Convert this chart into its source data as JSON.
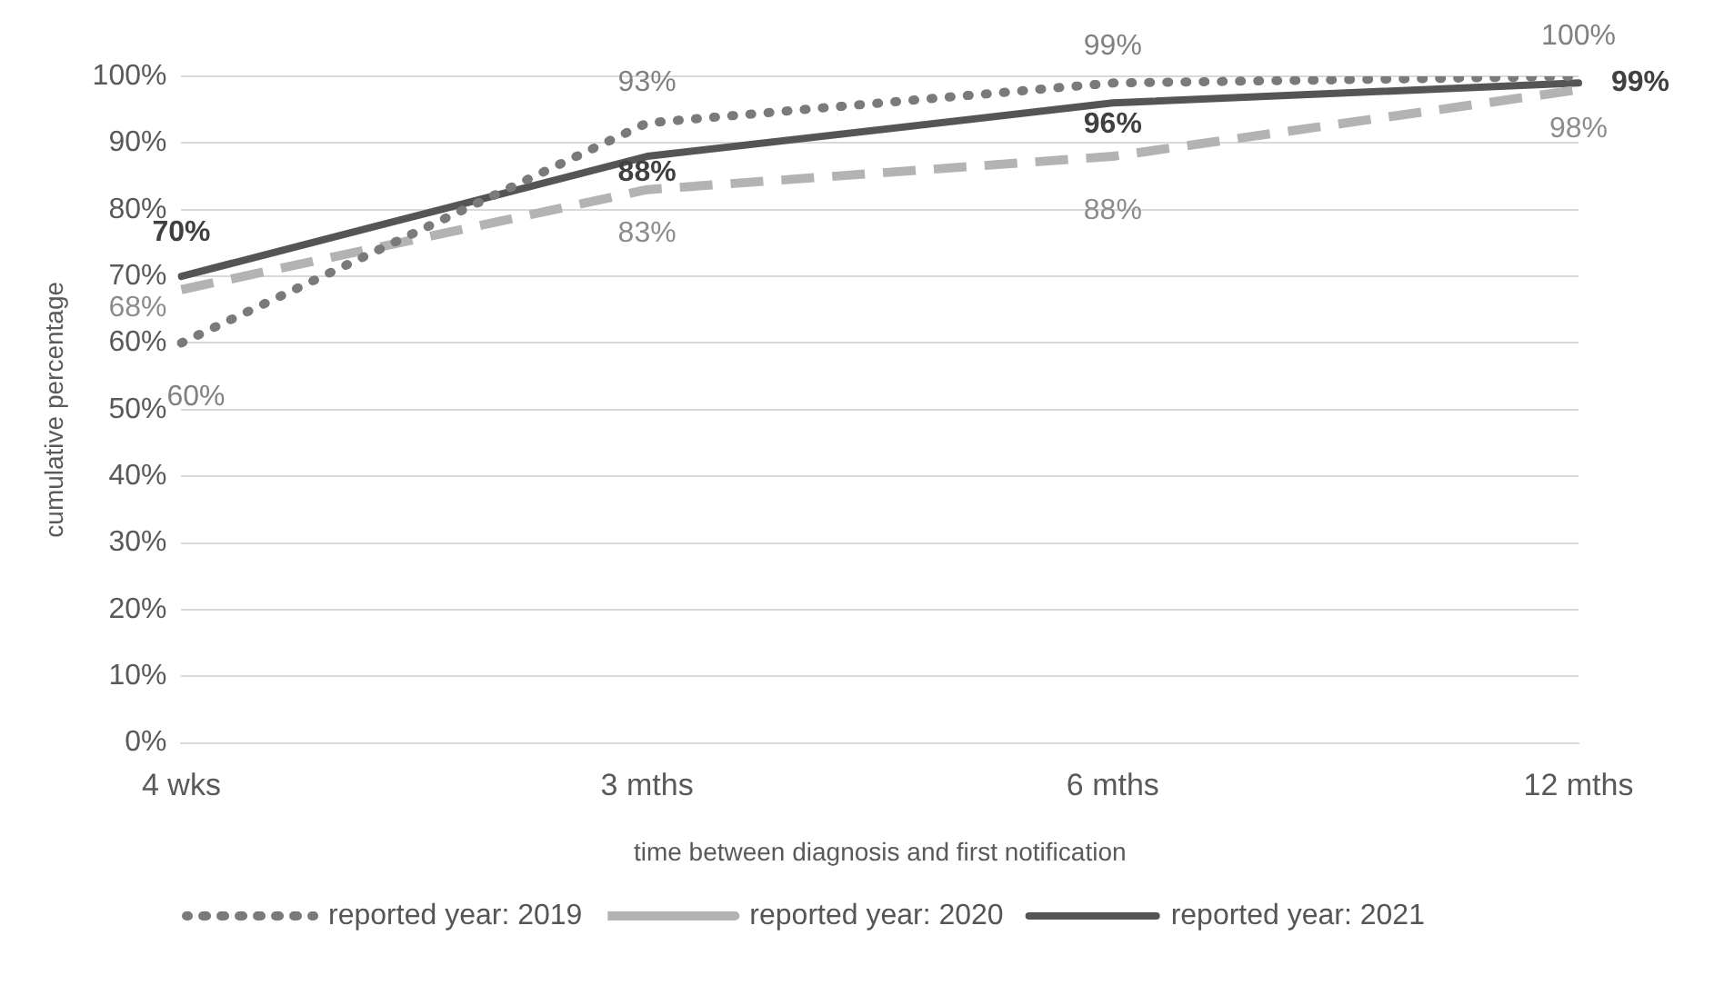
{
  "chart_data": {
    "type": "line",
    "xlabel": "time between diagnosis and first notification",
    "ylabel": "cumulative percentage",
    "categories": [
      "4 wks",
      "3 mths",
      "6 mths",
      "12 mths"
    ],
    "series": [
      {
        "name": "reported year: 2019",
        "color": "#7a7a7a",
        "line_style": "dotted",
        "values": [
          60,
          93,
          99,
          100
        ],
        "value_labels": [
          "60%",
          "93%",
          "99%",
          "100%"
        ]
      },
      {
        "name": "reported year: 2020",
        "color": "#b3b3b3",
        "line_style": "dashed",
        "values": [
          68,
          83,
          88,
          98
        ],
        "value_labels": [
          "68%",
          "83%",
          "88%",
          "98%"
        ]
      },
      {
        "name": "reported year: 2021",
        "color": "#555555",
        "line_style": "solid",
        "values": [
          70,
          88,
          96,
          99
        ],
        "value_labels": [
          "70%",
          "88%",
          "96%",
          "99%"
        ]
      }
    ],
    "ylim": [
      0,
      100
    ],
    "yticks": [
      {
        "value": 0,
        "label": "0%"
      },
      {
        "value": 10,
        "label": "10%"
      },
      {
        "value": 20,
        "label": "20%"
      },
      {
        "value": 30,
        "label": "30%"
      },
      {
        "value": 40,
        "label": "40%"
      },
      {
        "value": 50,
        "label": "50%"
      },
      {
        "value": 60,
        "label": "60%"
      },
      {
        "value": 70,
        "label": "70%"
      },
      {
        "value": 80,
        "label": "80%"
      },
      {
        "value": 90,
        "label": "90%"
      },
      {
        "value": 100,
        "label": "100%"
      }
    ],
    "grid": "y",
    "legend": "bottom",
    "marker": "none"
  }
}
